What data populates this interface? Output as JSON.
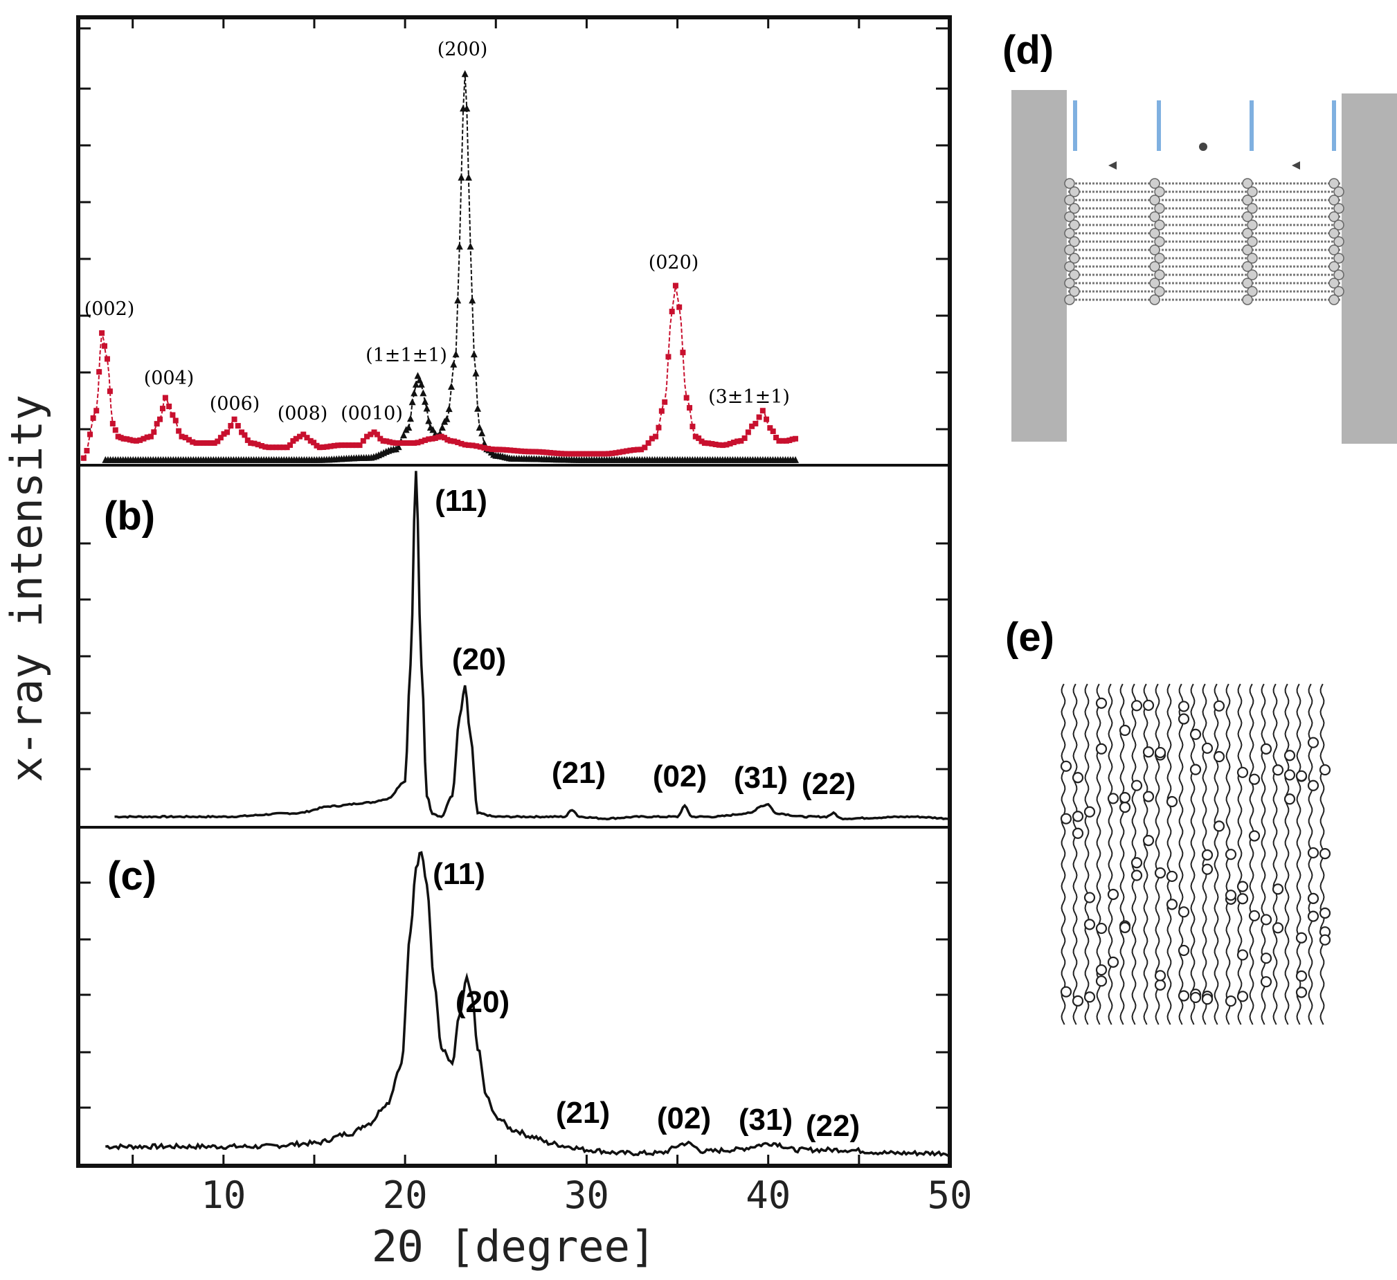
{
  "figure": {
    "ylabel": "x-ray intensity",
    "xlabel": "2Θ [degree]",
    "xticks": [
      "10",
      "20",
      "30",
      "40",
      "50"
    ]
  },
  "chart_data": [
    {
      "type": "line",
      "panel": "a",
      "xlim": [
        2,
        50
      ],
      "ylim": [
        0,
        100
      ],
      "series": [
        {
          "name": "red-squares",
          "color": "#c8102e",
          "marker": "square",
          "x": [
            2.3,
            3.0,
            3.3,
            3.6,
            3.9,
            4.2,
            4.5,
            5.2,
            6.0,
            6.5,
            6.8,
            7.2,
            7.7,
            8.5,
            9.5,
            10.2,
            10.6,
            11.0,
            11.5,
            12.5,
            13.5,
            14.0,
            14.4,
            14.8,
            15.3,
            16.5,
            17.5,
            17.9,
            18.3,
            18.8,
            19.5,
            20.5,
            21.5,
            22.0,
            22.5,
            23.5,
            25,
            27,
            29,
            31,
            33,
            33.8,
            34.3,
            34.7,
            34.9,
            35.1,
            35.5,
            36.0,
            36.5,
            37.5,
            38.5,
            39.3,
            39.7,
            40.1,
            40.6,
            41.0,
            41.5
          ],
          "y": [
            1,
            12,
            30,
            24,
            9,
            6,
            5.5,
            5,
            6,
            10,
            15,
            11,
            6,
            4.5,
            4.5,
            7,
            10,
            7,
            4.5,
            3.5,
            3.5,
            5.5,
            6.5,
            5,
            3.5,
            4,
            4,
            6,
            7,
            5,
            4.5,
            4.5,
            5.5,
            6,
            5,
            4,
            3,
            2.5,
            2,
            2,
            3,
            6,
            14,
            35,
            41,
            36,
            15,
            6,
            4.5,
            4,
            5,
            9,
            12,
            8,
            5,
            5,
            5.5
          ]
        },
        {
          "name": "black-triangles",
          "color": "#111111",
          "marker": "triangle",
          "x": [
            3.5,
            10,
            15,
            18,
            19.5,
            20.2,
            20.5,
            20.7,
            20.9,
            21.1,
            21.4,
            21.8,
            22.3,
            22.8,
            23.0,
            23.2,
            23.3,
            23.4,
            23.6,
            23.8,
            24.1,
            24.5,
            25.0,
            26,
            30,
            35,
            41.5
          ],
          "y": [
            0.5,
            0.5,
            0.5,
            1,
            3,
            8,
            16,
            20,
            18,
            14,
            8,
            6,
            10,
            25,
            50,
            82,
            90,
            82,
            50,
            25,
            8,
            3,
            1.5,
            0.8,
            0.5,
            0.5,
            0.5
          ]
        }
      ],
      "annotations": [
        "(002)",
        "(004)",
        "(006)",
        "(008)",
        "(0010)",
        "(1±1±1)",
        "(200)",
        "(020)",
        "(3±1±1)"
      ]
    },
    {
      "type": "line",
      "panel": "b",
      "panel_label": "(b)",
      "xlim": [
        2,
        50
      ],
      "ylim": [
        0,
        100
      ],
      "series": [
        {
          "name": "b",
          "color": "#111111",
          "x": [
            4,
            10,
            14,
            16,
            18,
            19,
            20,
            20.3,
            20.6,
            20.9,
            21.2,
            21.5,
            22,
            22.6,
            23.0,
            23.3,
            23.6,
            24,
            25,
            27,
            28.8,
            29.2,
            29.6,
            31,
            33,
            35.0,
            35.4,
            35.8,
            37,
            39,
            39.6,
            40.0,
            40.4,
            42,
            43.2,
            43.6,
            44,
            48,
            50
          ],
          "y": [
            2,
            2,
            3,
            5,
            6,
            7,
            12,
            45,
            100,
            45,
            8,
            3,
            2,
            8,
            30,
            39,
            25,
            3,
            2,
            2,
            2,
            4,
            2,
            1.5,
            2,
            2,
            5,
            2,
            2,
            3,
            5,
            5.5,
            3,
            2,
            2,
            3,
            1.5,
            2,
            1.5
          ]
        }
      ],
      "annotations": [
        "(11)",
        "(20)",
        "(21)",
        "(02)",
        "(31)",
        "(22)"
      ]
    },
    {
      "type": "line",
      "panel": "c",
      "panel_label": "(c)",
      "xlim": [
        2,
        50
      ],
      "ylim": [
        0,
        100
      ],
      "series": [
        {
          "name": "c",
          "color": "#111111",
          "x": [
            3.5,
            8,
            12,
            15,
            17,
            18,
            19,
            19.8,
            20.3,
            20.6,
            20.9,
            21.2,
            21.6,
            22.0,
            22.6,
            23.0,
            23.4,
            23.7,
            24.0,
            24.5,
            25,
            26,
            27,
            28,
            29,
            30,
            32,
            34,
            35.5,
            36.5,
            38,
            40.3,
            41.5,
            44,
            47,
            50
          ],
          "y": [
            5,
            5,
            5,
            6,
            9,
            12,
            18,
            30,
            70,
            90,
            95,
            85,
            55,
            35,
            30,
            45,
            56,
            50,
            35,
            20,
            14,
            10,
            8,
            6,
            5,
            4,
            3,
            3,
            6,
            3.5,
            4,
            6,
            4,
            4,
            3,
            3
          ]
        }
      ],
      "annotations": [
        "(11)",
        "(20)",
        "(21)",
        "(02)",
        "(31)",
        "(22)"
      ]
    }
  ],
  "panel_d": {
    "label": "(d)"
  },
  "panel_e": {
    "label": "(e)"
  }
}
